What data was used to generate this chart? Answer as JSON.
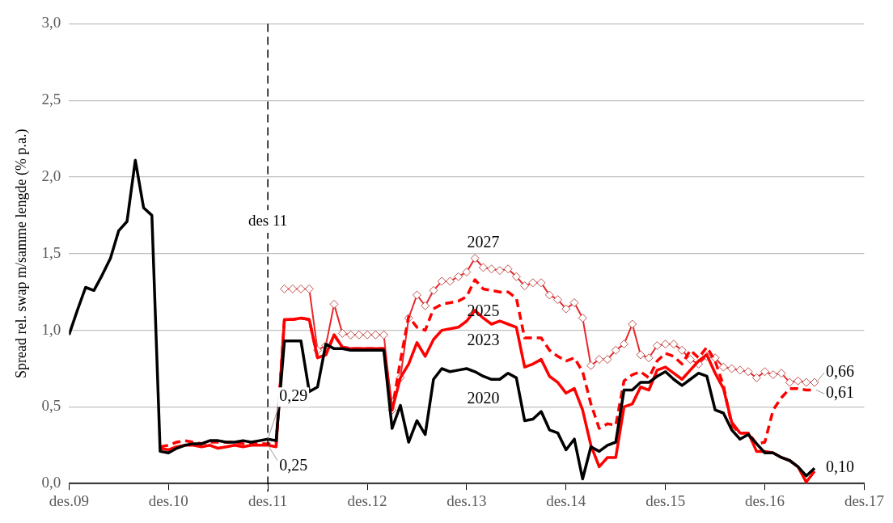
{
  "chart_data": {
    "type": "line",
    "ylabel": "Spread rel. swap m/samme lengde (% p.a.)",
    "x": [
      "2009-12",
      "2010-01",
      "2010-02",
      "2010-03",
      "2010-04",
      "2010-05",
      "2010-06",
      "2010-07",
      "2010-08",
      "2010-09",
      "2010-10",
      "2010-11",
      "2010-12",
      "2011-01",
      "2011-02",
      "2011-03",
      "2011-04",
      "2011-05",
      "2011-06",
      "2011-07",
      "2011-08",
      "2011-09",
      "2011-10",
      "2011-11",
      "2011-12",
      "2012-01",
      "2012-02",
      "2012-03",
      "2012-04",
      "2012-05",
      "2012-06",
      "2012-07",
      "2012-08",
      "2012-09",
      "2012-10",
      "2012-11",
      "2012-12",
      "2013-01",
      "2013-02",
      "2013-03",
      "2013-04",
      "2013-05",
      "2013-06",
      "2013-07",
      "2013-08",
      "2013-09",
      "2013-10",
      "2013-11",
      "2013-12",
      "2014-01",
      "2014-02",
      "2014-03",
      "2014-04",
      "2014-05",
      "2014-06",
      "2014-07",
      "2014-08",
      "2014-09",
      "2014-10",
      "2014-11",
      "2014-12",
      "2015-01",
      "2015-02",
      "2015-03",
      "2015-04",
      "2015-05",
      "2015-06",
      "2015-07",
      "2015-08",
      "2015-09",
      "2015-10",
      "2015-11",
      "2015-12",
      "2016-01",
      "2016-02",
      "2016-03",
      "2016-04",
      "2016-05",
      "2016-06",
      "2016-07",
      "2016-08",
      "2016-09",
      "2016-10",
      "2016-11",
      "2016-12",
      "2017-01",
      "2017-02",
      "2017-03",
      "2017-04",
      "2017-05",
      "2017-06"
    ],
    "series": [
      {
        "name": "2020",
        "color": "#000000",
        "line_style": "solid",
        "marker": "none",
        "values": [
          0.97,
          1.13,
          1.28,
          1.26,
          1.36,
          1.47,
          1.65,
          1.71,
          2.11,
          1.8,
          1.75,
          0.21,
          0.2,
          0.23,
          0.25,
          0.26,
          0.26,
          0.28,
          0.28,
          0.27,
          0.27,
          0.28,
          0.27,
          0.28,
          0.29,
          0.28,
          0.93,
          0.93,
          0.93,
          0.6,
          0.63,
          0.91,
          0.88,
          0.88,
          0.87,
          0.87,
          0.87,
          0.87,
          0.87,
          0.36,
          0.51,
          0.27,
          0.41,
          0.32,
          0.68,
          0.75,
          0.73,
          0.74,
          0.75,
          0.73,
          0.7,
          0.68,
          0.68,
          0.72,
          0.69,
          0.41,
          0.42,
          0.47,
          0.35,
          0.33,
          0.22,
          0.29,
          0.03,
          0.24,
          0.21,
          0.25,
          0.27,
          0.61,
          0.61,
          0.66,
          0.66,
          0.7,
          0.73,
          0.68,
          0.64,
          0.68,
          0.72,
          0.7,
          0.48,
          0.46,
          0.35,
          0.29,
          0.32,
          0.26,
          0.2,
          0.2,
          0.17,
          0.15,
          0.11,
          0.05,
          0.1
        ]
      },
      {
        "name": "2023",
        "color": "#ff0000",
        "line_style": "solid",
        "marker": "none",
        "values": [
          null,
          null,
          null,
          null,
          null,
          null,
          null,
          null,
          null,
          null,
          null,
          0.23,
          0.22,
          0.24,
          0.25,
          0.25,
          0.24,
          0.25,
          0.23,
          0.24,
          0.25,
          0.24,
          0.25,
          0.25,
          0.25,
          0.24,
          1.07,
          1.07,
          1.08,
          1.07,
          0.82,
          0.84,
          0.97,
          0.89,
          0.88,
          0.88,
          0.88,
          0.88,
          0.88,
          0.48,
          0.69,
          0.78,
          0.92,
          0.83,
          0.94,
          1.0,
          1.01,
          1.02,
          1.06,
          1.13,
          1.08,
          1.04,
          1.06,
          1.04,
          1.02,
          0.76,
          0.78,
          0.81,
          0.7,
          0.66,
          0.59,
          0.62,
          0.48,
          0.25,
          0.11,
          0.17,
          0.17,
          0.5,
          0.52,
          0.63,
          0.61,
          0.74,
          0.76,
          0.72,
          0.68,
          0.74,
          0.8,
          0.84,
          0.72,
          0.62,
          0.4,
          0.33,
          0.33,
          0.21,
          0.21,
          0.2,
          0.17,
          0.15,
          0.11,
          0.01,
          0.08
        ]
      },
      {
        "name": "2025",
        "color": "#ff0000",
        "line_style": "dashed",
        "marker": "none",
        "values": [
          null,
          null,
          null,
          null,
          null,
          null,
          null,
          null,
          null,
          null,
          null,
          0.24,
          0.25,
          0.27,
          0.28,
          0.27,
          0.26,
          0.27,
          0.27,
          0.27,
          0.27,
          0.26,
          0.26,
          0.26,
          0.26,
          0.26,
          1.07,
          1.07,
          1.08,
          1.07,
          0.82,
          0.84,
          0.97,
          0.89,
          0.88,
          0.88,
          0.88,
          0.88,
          0.88,
          0.48,
          0.8,
          1.09,
          1.02,
          1.0,
          1.14,
          1.17,
          1.18,
          1.19,
          1.22,
          1.33,
          1.27,
          1.26,
          1.25,
          1.25,
          1.21,
          0.95,
          0.95,
          0.95,
          0.87,
          0.83,
          0.8,
          0.82,
          0.73,
          0.52,
          0.36,
          0.39,
          0.38,
          0.67,
          0.71,
          0.73,
          0.69,
          0.8,
          0.85,
          0.83,
          0.78,
          0.87,
          0.82,
          0.89,
          0.8,
          0.64,
          0.38,
          0.33,
          0.33,
          0.26,
          0.27,
          0.48,
          0.56,
          0.62,
          0.62,
          0.61,
          0.61
        ]
      },
      {
        "name": "2027",
        "color": "#e8262b",
        "line_style": "solid",
        "marker": "diamond",
        "values": [
          null,
          null,
          null,
          null,
          null,
          null,
          null,
          null,
          null,
          null,
          null,
          null,
          null,
          null,
          null,
          null,
          null,
          null,
          null,
          null,
          null,
          null,
          null,
          null,
          null,
          null,
          1.27,
          1.27,
          1.27,
          1.27,
          0.87,
          0.9,
          1.17,
          0.98,
          0.97,
          0.97,
          0.97,
          0.97,
          0.97,
          0.48,
          0.69,
          1.08,
          1.23,
          1.16,
          1.26,
          1.32,
          1.32,
          1.35,
          1.38,
          1.47,
          1.41,
          1.4,
          1.39,
          1.4,
          1.35,
          1.29,
          1.31,
          1.31,
          1.23,
          1.2,
          1.14,
          1.18,
          1.08,
          0.77,
          0.81,
          0.81,
          0.87,
          0.91,
          1.04,
          0.84,
          0.82,
          0.9,
          0.91,
          0.91,
          0.87,
          0.81,
          0.78,
          0.83,
          0.82,
          0.76,
          0.75,
          0.74,
          0.73,
          0.69,
          0.73,
          0.71,
          0.72,
          0.66,
          0.67,
          0.66,
          0.66
        ]
      }
    ],
    "xlim": [
      "2009-12",
      "2017-12"
    ],
    "xticks": [
      {
        "value": "2009-12",
        "label": "des.09"
      },
      {
        "value": "2010-12",
        "label": "des.10"
      },
      {
        "value": "2011-12",
        "label": "des.11"
      },
      {
        "value": "2012-12",
        "label": "des.12"
      },
      {
        "value": "2013-12",
        "label": "des.13"
      },
      {
        "value": "2014-12",
        "label": "des.14"
      },
      {
        "value": "2015-12",
        "label": "des.15"
      },
      {
        "value": "2016-12",
        "label": "des.16"
      },
      {
        "value": "2017-12",
        "label": "des.17"
      }
    ],
    "ylim": [
      0,
      3
    ],
    "yticks": [
      {
        "value": 0,
        "label": "0,0"
      },
      {
        "value": 0.5,
        "label": "0,5"
      },
      {
        "value": 1,
        "label": "1,0"
      },
      {
        "value": 1.5,
        "label": "1,5"
      },
      {
        "value": 2,
        "label": "2,0"
      },
      {
        "value": 2.5,
        "label": "2,5"
      },
      {
        "value": 3,
        "label": "3,0"
      }
    ],
    "grid": "y",
    "legend": false,
    "ref_lines": [
      {
        "axis": "x",
        "value": "2011-12",
        "label": "des 11",
        "line_style": "dashed",
        "color": "#000000"
      }
    ],
    "annotations": [
      {
        "text": "0,29",
        "x": "2011-12",
        "y": 0.29
      },
      {
        "text": "0,25",
        "x": "2011-12",
        "y": 0.25
      },
      {
        "text": "0,66",
        "x": "2017-06",
        "y": 0.66
      },
      {
        "text": "0,61",
        "x": "2017-06",
        "y": 0.61
      },
      {
        "text": "0,10",
        "x": "2017-06",
        "y": 0.1
      }
    ]
  }
}
